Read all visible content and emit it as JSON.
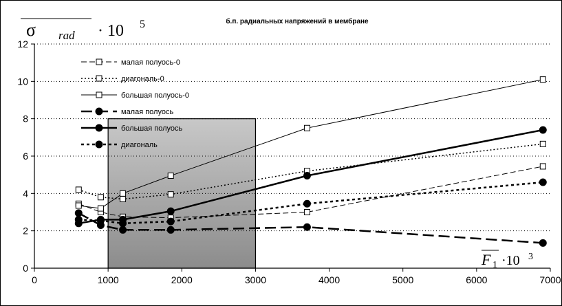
{
  "chart_data": {
    "type": "line",
    "title": "б.п. радиальных напряжений в мембране",
    "ylabel": {
      "symbol": "σ",
      "subscript": "rad",
      "factor": "· 10",
      "exponent": "5"
    },
    "xlabel": {
      "symbol": "F",
      "subscript": "1",
      "factor": "·10",
      "exponent": "3"
    },
    "xlim": [
      0,
      7000
    ],
    "ylim": [
      0,
      12
    ],
    "xticks": [
      0,
      1000,
      2000,
      3000,
      4000,
      5000,
      6000,
      7000
    ],
    "yticks": [
      0,
      2,
      4,
      6,
      8,
      10,
      12
    ],
    "grid": "horizontal dotted",
    "legend_position": "top-left",
    "highlight_region": {
      "x": [
        1000,
        3000
      ],
      "y": [
        0,
        8
      ]
    },
    "series": [
      {
        "name": "малая полуось-0",
        "x": [
          600,
          900,
          1200,
          1850,
          3700,
          6900
        ],
        "y": [
          3.45,
          3.0,
          2.75,
          2.7,
          3.0,
          5.45
        ],
        "color": "#000000",
        "dash": "8,4",
        "width": 1,
        "marker": "square-open"
      },
      {
        "name": "диагональ-0",
        "x": [
          600,
          900,
          1200,
          1850,
          3700,
          6900
        ],
        "y": [
          4.2,
          3.8,
          3.7,
          3.95,
          5.2,
          6.65
        ],
        "color": "#000000",
        "dash": "2,3",
        "width": 1.5,
        "marker": "square-open"
      },
      {
        "name": "большая полуось-0",
        "x": [
          600,
          900,
          1200,
          1850,
          3700,
          6900
        ],
        "y": [
          3.35,
          3.2,
          4.0,
          4.95,
          7.5,
          10.1
        ],
        "color": "#000000",
        "dash": "",
        "width": 1,
        "marker": "square-open"
      },
      {
        "name": "малая полуось",
        "x": [
          600,
          900,
          1200,
          1850,
          3700,
          6900
        ],
        "y": [
          2.95,
          2.3,
          2.05,
          2.05,
          2.2,
          1.35
        ],
        "color": "#000000",
        "dash": "16,7",
        "width": 2.5,
        "marker": "circle-filled"
      },
      {
        "name": "большая полуось",
        "x": [
          600,
          900,
          1200,
          1850,
          3700,
          6900
        ],
        "y": [
          2.4,
          2.6,
          2.6,
          3.05,
          4.95,
          7.4
        ],
        "color": "#000000",
        "dash": "",
        "width": 2.5,
        "marker": "circle-filled"
      },
      {
        "name": "диагональ",
        "x": [
          600,
          900,
          1200,
          1850,
          3700,
          6900
        ],
        "y": [
          2.6,
          2.55,
          2.4,
          2.5,
          3.45,
          4.6
        ],
        "color": "#000000",
        "dash": "4,4",
        "width": 2.5,
        "marker": "circle-filled"
      }
    ]
  }
}
